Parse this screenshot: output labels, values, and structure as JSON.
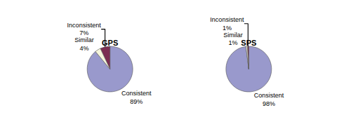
{
  "chart_data": [
    {
      "type": "pie",
      "title": "GPS",
      "categories": [
        "Consistent",
        "Inconsistent",
        "Similar"
      ],
      "values": [
        89,
        7,
        4
      ],
      "value_labels": [
        "89%",
        "7%",
        "4%"
      ],
      "colors": [
        "#9999cc",
        "#7b2d52",
        "#f5f5dc"
      ]
    },
    {
      "type": "pie",
      "title": "SPS",
      "categories": [
        "Consistent",
        "Inconsistent",
        "Similar"
      ],
      "values": [
        98,
        1,
        1
      ],
      "value_labels": [
        "98%",
        "1%",
        "1%"
      ],
      "colors": [
        "#9999cc",
        "#7b2d52",
        "#f5f5dc"
      ]
    }
  ]
}
